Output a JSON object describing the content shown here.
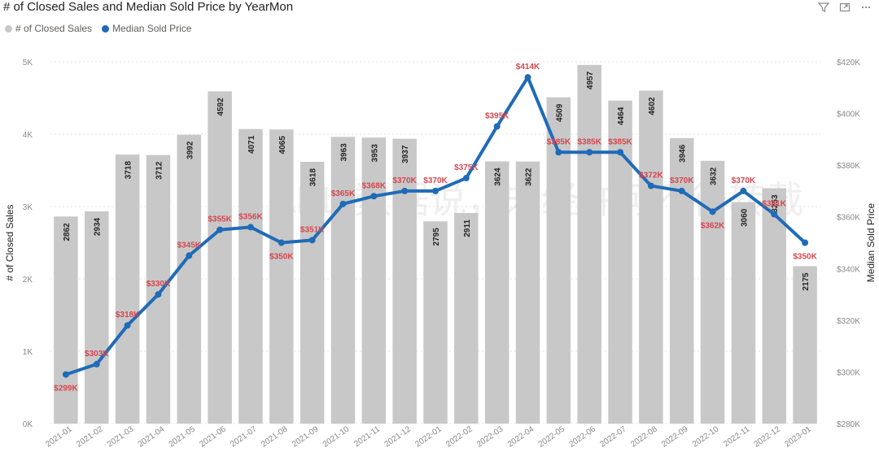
{
  "title": "# of Closed Sales and Median Sold Price by YearMon",
  "legend": [
    {
      "label": "# of Closed Sales",
      "color": "#c8c8c8"
    },
    {
      "label": "Median Sold Price",
      "color": "#1f6bb8"
    }
  ],
  "toolbar": {
    "filter_icon": "filter-icon",
    "focus_icon": "focus-mode-icon",
    "more_icon": "more-options-icon"
  },
  "watermark": "ABL·数据说，未经许可不得转载",
  "chart_data": {
    "type": "bar+line",
    "title": "# of Closed Sales and Median Sold Price by YearMon",
    "xlabel": "",
    "categories": [
      "2021-01",
      "2021-02",
      "2021-03",
      "2021-04",
      "2021-05",
      "2021-06",
      "2021-07",
      "2021-08",
      "2021-09",
      "2021-10",
      "2021-11",
      "2021-12",
      "2022-01",
      "2022-02",
      "2022-03",
      "2022-04",
      "2022-05",
      "2022-06",
      "2022-07",
      "2022-08",
      "2022-09",
      "2022-10",
      "2022-11",
      "2022-12",
      "2023-01"
    ],
    "bars": {
      "name": "# of Closed Sales",
      "axis_title": "# of Closed Sales",
      "values": [
        2862,
        2934,
        3718,
        3712,
        3992,
        4592,
        4071,
        4065,
        3618,
        3963,
        3953,
        3937,
        2795,
        2911,
        3624,
        3622,
        4509,
        4957,
        4464,
        4602,
        3946,
        3632,
        3060,
        3253,
        2175
      ],
      "labels": [
        "2862",
        "2934",
        "3718",
        "3712",
        "3992",
        "4592",
        "4071",
        "4065",
        "3618",
        "3963",
        "3953",
        "3937",
        "2795",
        "2911",
        "3624",
        "3622",
        "4509",
        "4957",
        "4464",
        "4602",
        "3946",
        "3632",
        "3060",
        "3253",
        "2175"
      ],
      "ylim": [
        0,
        5000
      ],
      "ticks": [
        "0K",
        "1K",
        "2K",
        "3K",
        "4K",
        "5K"
      ],
      "color": "#c8c8c8"
    },
    "line": {
      "name": "Median Sold Price",
      "axis_title": "Median Sold Price",
      "values": [
        299,
        303,
        318,
        330,
        345,
        355,
        356,
        350,
        351,
        365,
        368,
        370,
        370,
        375,
        395,
        414,
        385,
        385,
        385,
        372,
        370,
        362,
        370,
        361,
        350
      ],
      "labels": [
        "$299K",
        "$303K",
        "$318K",
        "$330K",
        "$345K",
        "$355K",
        "$356K",
        "$350K",
        "$351K",
        "$365K",
        "$368K",
        "$370K",
        "$370K",
        "$375K",
        "$395K",
        "$414K",
        "$385K",
        "$385K",
        "$385K",
        "$372K",
        "$370K",
        "$362K",
        "$370K",
        "$361K",
        "$350K"
      ],
      "ylim": [
        280,
        420
      ],
      "ticks": [
        "$280K",
        "$300K",
        "$320K",
        "$340K",
        "$360K",
        "$380K",
        "$400K",
        "$420K"
      ],
      "color": "#1f6bb8"
    },
    "grid": true,
    "legend_position": "top-left"
  }
}
